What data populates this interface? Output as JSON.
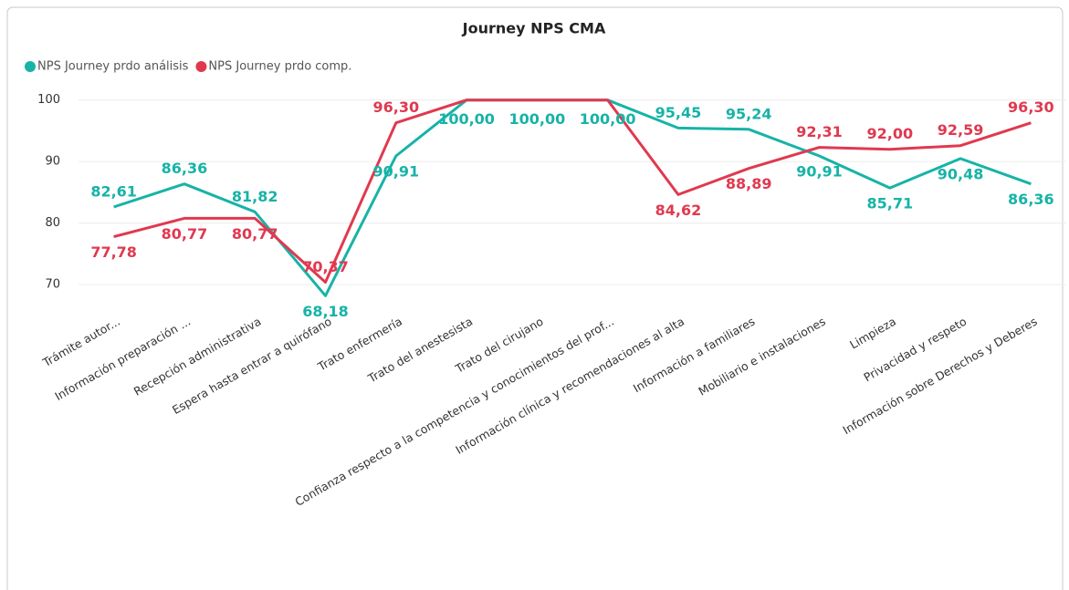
{
  "chart_data": {
    "type": "line",
    "title": "Journey NPS CMA",
    "categories": [
      "Trámite autor...",
      "Información preparación ...",
      "Recepción administrativa",
      "Espera hasta entrar a quirófano",
      "Trato enfermería",
      "Trato del anestesista",
      "Trato del cirujano",
      "Confianza respecto a la competencia y conocimientos del prof...",
      "Información clínica y recomendaciones al alta",
      "Información a familiares",
      "Mobiliario e instalaciones",
      "Limpieza",
      "Privacidad y respeto",
      "Información sobre Derechos y Deberes"
    ],
    "series": [
      {
        "name": "NPS Journey prdo análisis",
        "color": "#17b3a7",
        "values": [
          82.61,
          86.36,
          81.82,
          68.18,
          90.91,
          100.0,
          100.0,
          100.0,
          95.45,
          95.24,
          90.91,
          85.71,
          90.48,
          86.36
        ],
        "value_labels": [
          "82,61",
          "86,36",
          "81,82",
          "68,18",
          "90,91",
          "100,00",
          "100,00",
          "100,00",
          "95,45",
          "95,24",
          "90,91",
          "85,71",
          "90,48",
          "86,36"
        ]
      },
      {
        "name": "NPS Journey prdo comp.",
        "color": "#e0394f",
        "values": [
          77.78,
          80.77,
          80.77,
          70.37,
          96.3,
          100.0,
          100.0,
          100.0,
          84.62,
          88.89,
          92.31,
          92.0,
          92.59,
          96.3
        ],
        "value_labels": [
          "77,78",
          "80,77",
          "80,77",
          "70,37",
          "96,30",
          null,
          null,
          null,
          "84,62",
          "88,89",
          "92,31",
          "92,00",
          "92,59",
          "96,30"
        ]
      }
    ],
    "ylim": [
      66,
      101
    ],
    "yticks": [
      70,
      80,
      90,
      100
    ],
    "grid": true,
    "legend": "top-left"
  }
}
